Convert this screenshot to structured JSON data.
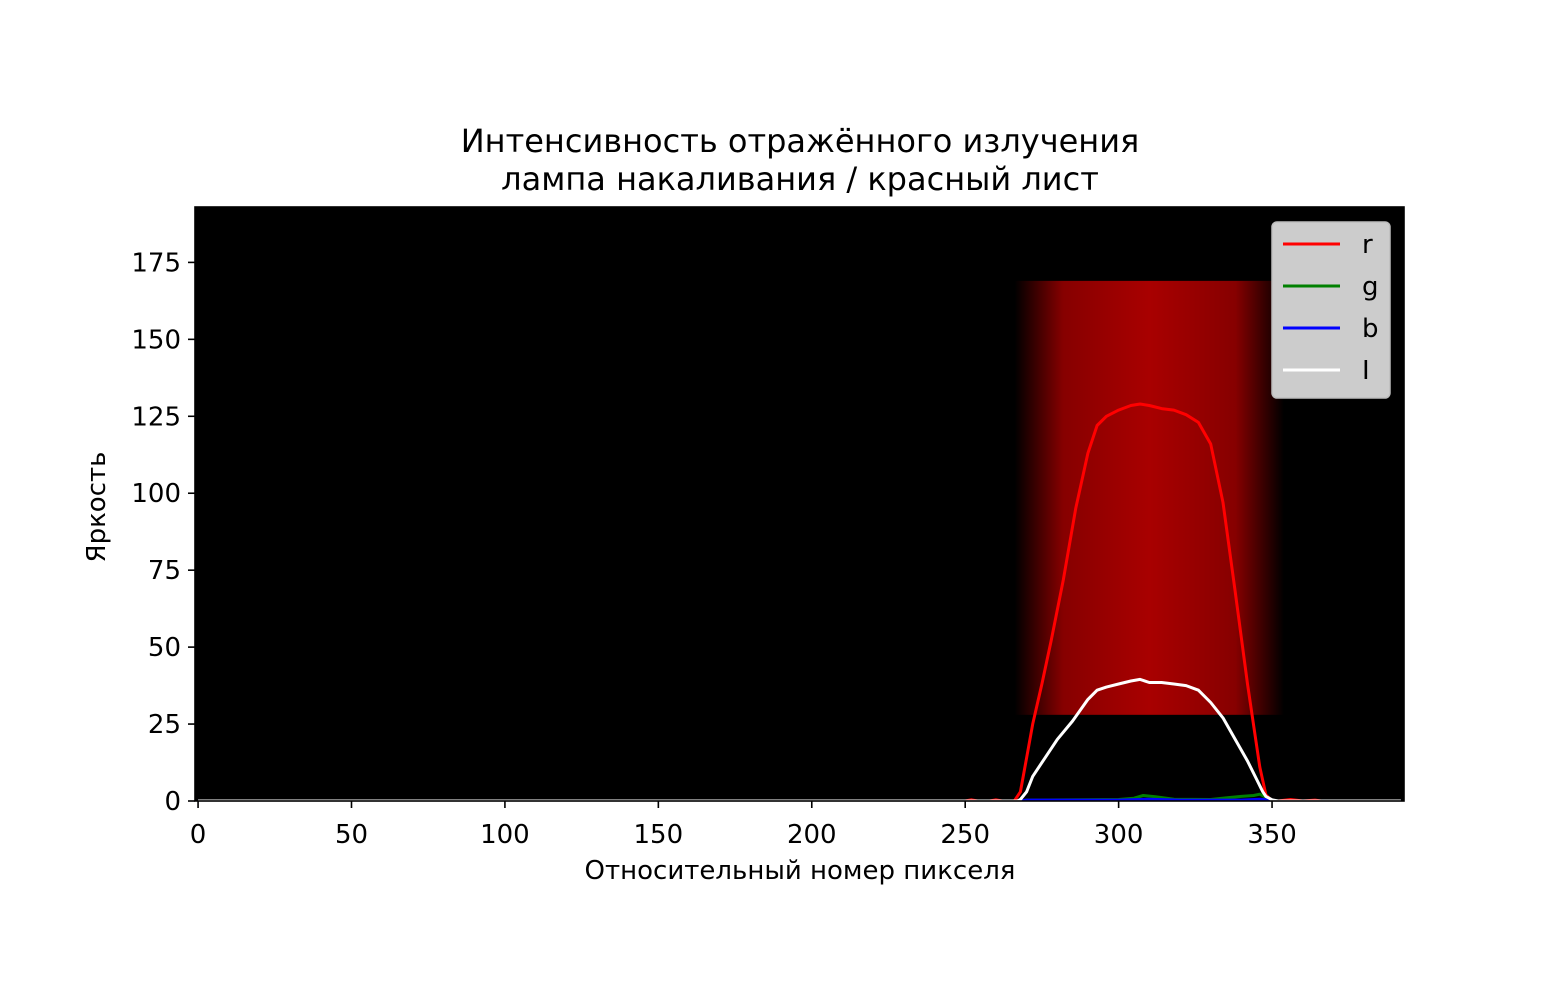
{
  "chart_data": {
    "type": "line",
    "title": [
      "Интенсивность отражённого излучения",
      "лампа накаливания / красный лист"
    ],
    "xlabel": "Относительный номер пикселя",
    "ylabel": "Яркость",
    "xlim": [
      -1,
      393
    ],
    "ylim": [
      0,
      193
    ],
    "xticks": [
      0,
      50,
      100,
      150,
      200,
      250,
      300,
      350
    ],
    "yticks": [
      0,
      25,
      50,
      75,
      100,
      125,
      150,
      175
    ],
    "background_image": {
      "description_colors": {
        "base": "#000000",
        "band": "#b30000"
      },
      "band_x": [
        272,
        348
      ],
      "band_y": [
        28,
        169
      ]
    },
    "legend": {
      "loc": "top-right",
      "entries": [
        "r",
        "g",
        "b",
        "I"
      ]
    },
    "series": [
      {
        "name": "r",
        "color": "#ff0000",
        "x": [
          0,
          250,
          252,
          254,
          258,
          260,
          262,
          266,
          268,
          270,
          272,
          275,
          278,
          282,
          286,
          290,
          293,
          296,
          300,
          304,
          307,
          310,
          314,
          318,
          322,
          326,
          330,
          334,
          338,
          342,
          346,
          348,
          350,
          352,
          356,
          360,
          364,
          366,
          370,
          392
        ],
        "y": [
          0,
          0,
          0.4,
          0,
          0,
          0.4,
          0,
          0,
          3,
          14,
          25,
          38,
          52,
          72,
          95,
          113,
          122,
          125,
          127,
          128.5,
          129,
          128.5,
          127.5,
          127,
          125.5,
          123,
          116,
          97,
          68,
          38,
          11,
          2,
          0,
          0,
          0.5,
          0,
          0.3,
          0,
          0,
          0
        ]
      },
      {
        "name": "g",
        "color": "#008000",
        "x": [
          0,
          268,
          270,
          290,
          300,
          305,
          308,
          312,
          318,
          330,
          335,
          340,
          344,
          346,
          348,
          350,
          392
        ],
        "y": [
          0,
          0,
          0.3,
          0.4,
          0.5,
          0.9,
          1.8,
          1.4,
          0.6,
          0.5,
          1.0,
          1.5,
          1.8,
          2.2,
          1.2,
          0,
          0
        ]
      },
      {
        "name": "b",
        "color": "#0000ff",
        "x": [
          0,
          268,
          270,
          300,
          310,
          320,
          340,
          346,
          348,
          350,
          392
        ],
        "y": [
          0,
          0,
          0.3,
          0.3,
          0.6,
          0.3,
          0.3,
          0.6,
          0.4,
          0,
          0
        ]
      },
      {
        "name": "I",
        "color": "#ffffff",
        "x": [
          0,
          267,
          268,
          270,
          272,
          276,
          280,
          285,
          290,
          293,
          296,
          300,
          304,
          307,
          310,
          314,
          318,
          322,
          326,
          330,
          334,
          338,
          342,
          345,
          347,
          348,
          350,
          352,
          392
        ],
        "y": [
          0,
          0,
          0.5,
          3,
          8,
          14,
          20,
          26,
          33,
          36,
          37,
          38,
          39,
          39.5,
          38.5,
          38.5,
          38,
          37.5,
          36,
          32,
          27,
          20,
          13,
          7,
          3,
          1.5,
          0.4,
          0,
          0
        ]
      }
    ]
  }
}
